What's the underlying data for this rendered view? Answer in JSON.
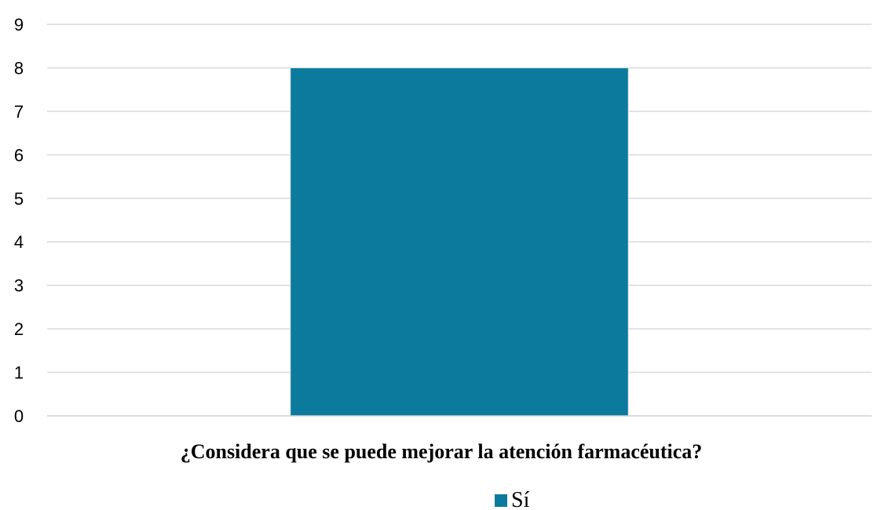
{
  "chart_data": {
    "type": "bar",
    "categories": [
      ""
    ],
    "series": [
      {
        "name": "Sí",
        "values": [
          8
        ],
        "color": "#0b7a9d"
      }
    ],
    "title": "",
    "xlabel": "¿Considera que se puede mejorar la atención farmacéutica?",
    "ylabel": "",
    "ylim": [
      0,
      9
    ],
    "yticks": [
      "0",
      "1",
      "2",
      "3",
      "4",
      "5",
      "6",
      "7",
      "8",
      "9"
    ],
    "grid": true,
    "legend": {
      "position": "bottom",
      "entries": [
        "Sí"
      ]
    }
  }
}
